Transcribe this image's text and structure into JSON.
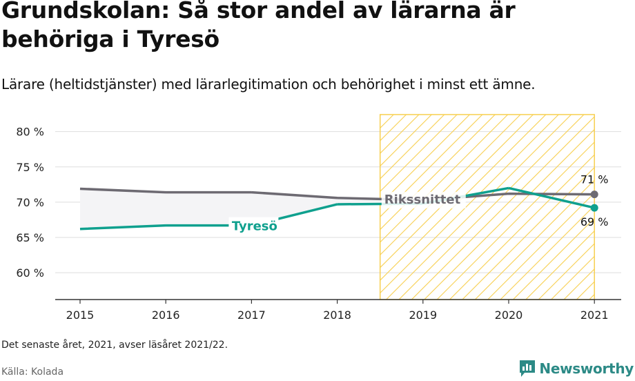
{
  "header": {
    "title": "Grundskolan: Så stor andel av lärarna är behöriga i Tyresö",
    "subtitle": "Lärare (heltidstjänster) med lärarlegitimation och behörighet i minst ett ämne."
  },
  "footer": {
    "note": "Det senaste året, 2021, avser läsåret 2021/22.",
    "source": "Källa: Kolada",
    "brand": "Newsworthy"
  },
  "colors": {
    "tyreso": "#0fa08e",
    "riks": "#6d6a72",
    "highlight": "#f7cf4f",
    "brand": "#2c8a86"
  },
  "chart_data": {
    "type": "line",
    "x": [
      2015,
      2016,
      2017,
      2018,
      2019,
      2020,
      2021
    ],
    "y_ticks": [
      "60 %",
      "65 %",
      "70 %",
      "75 %",
      "80 %"
    ],
    "y_tick_values": [
      60,
      65,
      70,
      75,
      80
    ],
    "x_ticks": [
      "2015",
      "2016",
      "2017",
      "2018",
      "2019",
      "2020",
      "2021"
    ],
    "ylim": [
      56.2,
      83
    ],
    "highlight_range": [
      2018.5,
      2021
    ],
    "series": [
      {
        "name": "Rikssnittet",
        "values": [
          71.9,
          71.4,
          71.4,
          70.6,
          70.3,
          71.2,
          71.1
        ],
        "end_label": "71 %"
      },
      {
        "name": "Tyresö",
        "values": [
          66.2,
          66.7,
          66.7,
          69.7,
          69.8,
          72.0,
          69.2
        ],
        "end_label": "69 %"
      }
    ]
  }
}
